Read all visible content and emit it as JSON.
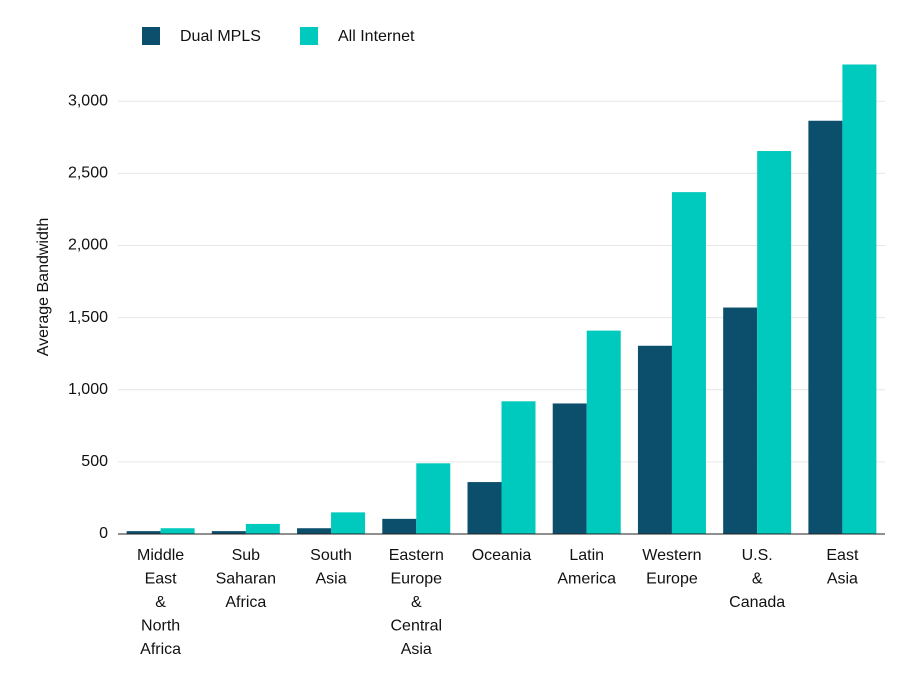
{
  "chart_data": {
    "type": "bar",
    "y_label": "Average Bandwidth",
    "categories": [
      "Middle East & North Africa",
      "Sub Saharan Africa",
      "South Asia",
      "Eastern Europe & Central Asia",
      "Oceania",
      "Latin America",
      "Western Europe",
      "U.S. & Canada",
      "East Asia"
    ],
    "series": [
      {
        "name": "Dual MPLS",
        "color": "#0b4f6c",
        "values": [
          20,
          20,
          40,
          105,
          360,
          905,
          1305,
          1570,
          2865
        ]
      },
      {
        "name": "All Internet",
        "color": "#00c9bd",
        "values": [
          40,
          70,
          150,
          490,
          920,
          1410,
          2370,
          2655,
          3255
        ]
      }
    ],
    "ylim": [
      0,
      3300
    ],
    "yticks": [
      0,
      500,
      {
        "value": 1000,
        "label": "1,000"
      },
      {
        "value": 1500,
        "label": "1,500"
      },
      {
        "value": 2000,
        "label": "2,000"
      },
      {
        "value": 2500,
        "label": "2,500"
      },
      {
        "value": 3000,
        "label": "3,000"
      }
    ],
    "grid": true
  }
}
